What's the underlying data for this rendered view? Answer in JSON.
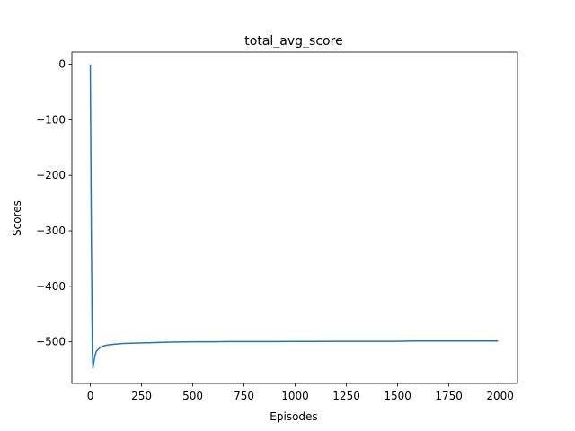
{
  "chart_data": {
    "type": "line",
    "title": "total_avg_score",
    "xlabel": "Episodes",
    "ylabel": "Scores",
    "xlim": [
      -90,
      2085
    ],
    "ylim": [
      -575,
      22
    ],
    "xticks": [
      0,
      250,
      500,
      750,
      1000,
      1250,
      1500,
      1750,
      2000
    ],
    "yticks": [
      0,
      -100,
      -200,
      -300,
      -400,
      -500
    ],
    "ytick_labels": [
      "0",
      "−100",
      "−200",
      "−300",
      "−400",
      "−500"
    ],
    "grid": false,
    "color": "#1f77b4",
    "series": [
      {
        "x": [
          0,
          5,
          10,
          13,
          16,
          20,
          25,
          30,
          40,
          50,
          60,
          80,
          100,
          130,
          160,
          200,
          250,
          300,
          350,
          400,
          500,
          600,
          700,
          800,
          900,
          1000,
          1100,
          1200,
          1300,
          1400,
          1500,
          1550,
          1600,
          1650,
          1700,
          1800,
          1900,
          1990
        ],
        "y": [
          0,
          -300,
          -520,
          -547,
          -540,
          -530,
          -522,
          -517,
          -513,
          -510,
          -508,
          -506,
          -505,
          -504,
          -503,
          -502.5,
          -502,
          -501.5,
          -501,
          -500.5,
          -500,
          -500,
          -499.5,
          -499.5,
          -499.5,
          -499.3,
          -499.3,
          -499.2,
          -499.2,
          -499.1,
          -499.1,
          -498.8,
          -498.6,
          -498.5,
          -498.5,
          -498.5,
          -498.5,
          -498.5
        ]
      }
    ]
  }
}
